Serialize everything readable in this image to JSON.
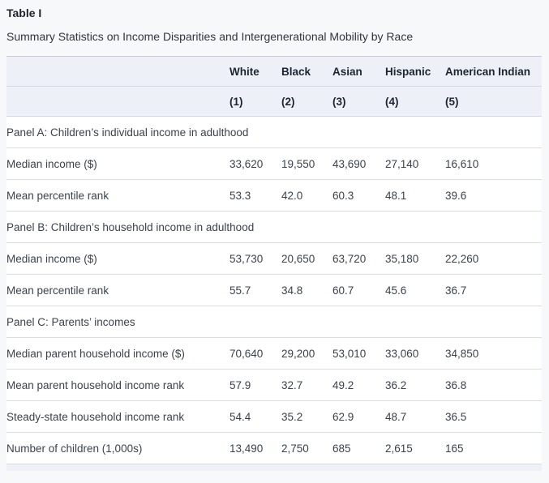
{
  "title": "Table I",
  "subtitle": "Summary Statistics on Income Disparities and Intergenerational Mobility by Race",
  "colors": {
    "page_bg": "#f7f8f9",
    "table_bg": "#ffffff",
    "header_bg": "#edf1f7",
    "header_divider": "#d5d9e7",
    "row_divider": "#d9dce1",
    "table_top_border": "#c9cfd8",
    "title_text": "#1f2328",
    "header_text": "#1d2530",
    "body_text": "#3b424d"
  },
  "table": {
    "columns": [
      "White",
      "Black",
      "Asian",
      "Hispanic",
      "American Indian"
    ],
    "column_numbers": [
      "(1)",
      "(2)",
      "(3)",
      "(4)",
      "(5)"
    ],
    "panels": [
      {
        "label": "Panel A: Children’s individual income in adulthood",
        "rows": [
          {
            "label": "Median income ($)",
            "values": [
              "33,620",
              "19,550",
              "43,690",
              "27,140",
              "16,610"
            ]
          },
          {
            "label": "Mean percentile rank",
            "values": [
              "53.3",
              "42.0",
              "60.3",
              "48.1",
              "39.6"
            ]
          }
        ]
      },
      {
        "label": "Panel B: Children’s household income in adulthood",
        "rows": [
          {
            "label": "Median income ($)",
            "values": [
              "53,730",
              "20,650",
              "63,720",
              "35,180",
              "22,260"
            ]
          },
          {
            "label": "Mean percentile rank",
            "values": [
              "55.7",
              "34.8",
              "60.7",
              "45.6",
              "36.7"
            ]
          }
        ]
      },
      {
        "label": "Panel C: Parents’ incomes",
        "rows": [
          {
            "label": "Median parent household income ($)",
            "values": [
              "70,640",
              "29,200",
              "53,010",
              "33,060",
              "34,850"
            ]
          },
          {
            "label": "Mean parent household income rank",
            "values": [
              "57.9",
              "32.7",
              "49.2",
              "36.2",
              "36.8"
            ]
          },
          {
            "label": "Steady-state household income rank",
            "values": [
              "54.4",
              "35.2",
              "62.9",
              "48.7",
              "36.5"
            ]
          },
          {
            "label": "Number of children (1,000s)",
            "values": [
              "13,490",
              "2,750",
              "685",
              "2,615",
              "165"
            ]
          }
        ]
      }
    ]
  },
  "chart_data": {
    "type": "table",
    "title": "Table I — Summary Statistics on Income Disparities and Intergenerational Mobility by Race",
    "categories": [
      "White",
      "Black",
      "Asian",
      "Hispanic",
      "American Indian"
    ],
    "series": [
      {
        "name": "Panel A: Median income ($)",
        "values": [
          33620,
          19550,
          43690,
          27140,
          16610
        ]
      },
      {
        "name": "Panel A: Mean percentile rank",
        "values": [
          53.3,
          42.0,
          60.3,
          48.1,
          39.6
        ]
      },
      {
        "name": "Panel B: Median income ($)",
        "values": [
          53730,
          20650,
          63720,
          35180,
          22260
        ]
      },
      {
        "name": "Panel B: Mean percentile rank",
        "values": [
          55.7,
          34.8,
          60.7,
          45.6,
          36.7
        ]
      },
      {
        "name": "Panel C: Median parent household income ($)",
        "values": [
          70640,
          29200,
          53010,
          33060,
          34850
        ]
      },
      {
        "name": "Panel C: Mean parent household income rank",
        "values": [
          57.9,
          32.7,
          49.2,
          36.2,
          36.8
        ]
      },
      {
        "name": "Panel C: Steady-state household income rank",
        "values": [
          54.4,
          35.2,
          62.9,
          48.7,
          36.5
        ]
      },
      {
        "name": "Panel C: Number of children (1,000s)",
        "values": [
          13490,
          2750,
          685,
          2615,
          165
        ]
      }
    ]
  }
}
